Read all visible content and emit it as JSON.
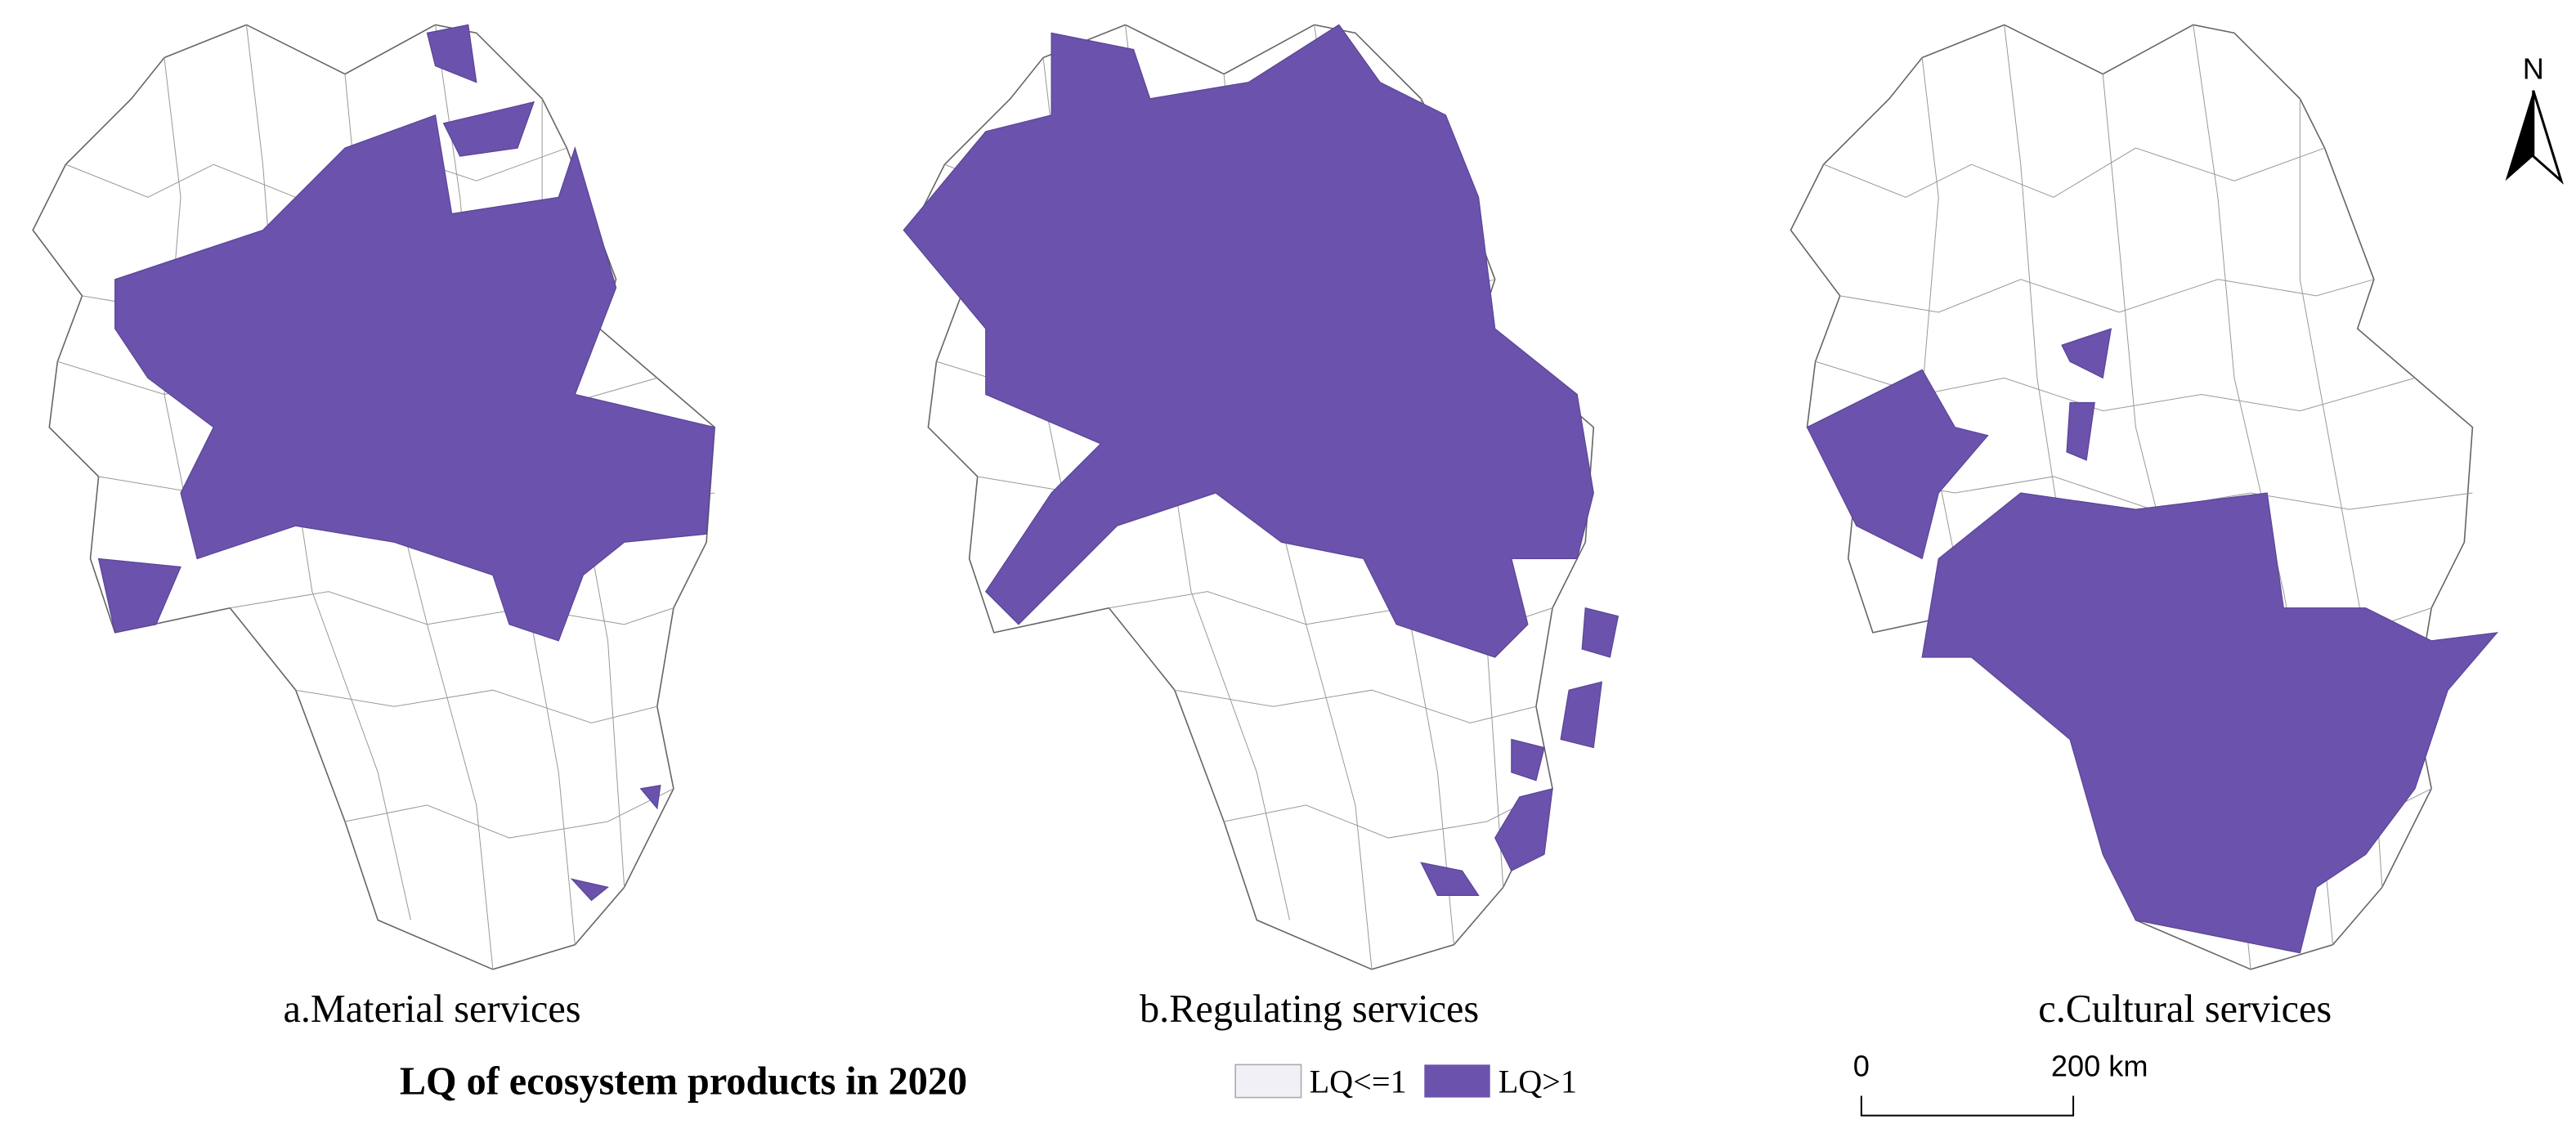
{
  "title": "LQ of ecosystem products in 2020",
  "panels": [
    {
      "caption": "a.Material services"
    },
    {
      "caption": "b.Regulating services"
    },
    {
      "caption": "c.Cultural services"
    }
  ],
  "legend": [
    {
      "label": "LQ<=1"
    },
    {
      "label": "LQ>1"
    }
  ],
  "north": "N",
  "scale_bar": {
    "labels": [
      "0",
      "200 km"
    ]
  }
}
